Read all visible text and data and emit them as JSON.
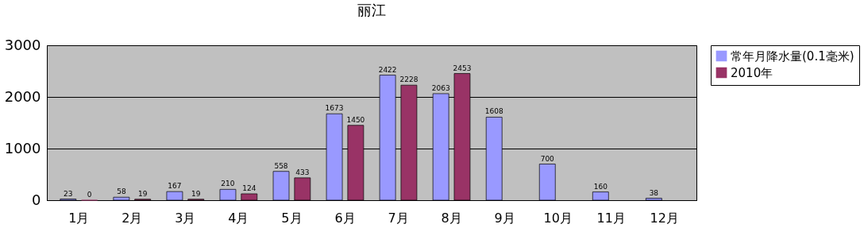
{
  "chart_data": {
    "type": "bar",
    "title": "丽江",
    "categories": [
      "1月",
      "2月",
      "3月",
      "4月",
      "5月",
      "6月",
      "7月",
      "8月",
      "9月",
      "10月",
      "11月",
      "12月"
    ],
    "series": [
      {
        "name": "常年月降水量(0.1毫米)",
        "color": "#9999ff",
        "values": [
          23,
          58,
          167,
          210,
          558,
          1673,
          2422,
          2063,
          1608,
          700,
          160,
          38
        ]
      },
      {
        "name": "2010年",
        "color": "#993366",
        "values": [
          0,
          19,
          19,
          124,
          433,
          1450,
          2228,
          2453,
          null,
          null,
          null,
          null
        ]
      }
    ],
    "ylim": [
      0,
      3000
    ],
    "yticks": [
      0,
      1000,
      2000,
      3000
    ],
    "grid": "y",
    "legend": "right",
    "data_labels": true
  }
}
